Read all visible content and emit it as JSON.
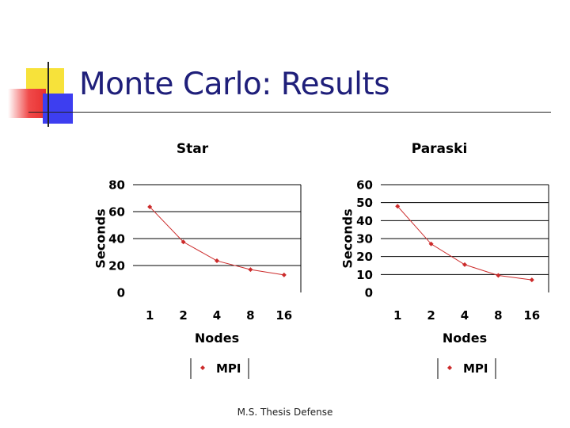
{
  "slide": {
    "title": "Monte Carlo: Results",
    "footer": "M.S. Thesis Defense"
  },
  "colors": {
    "title": "#1f1f7a",
    "series": "#cc2b2b",
    "axis": "#000000"
  },
  "chart_data": [
    {
      "type": "line",
      "title": "Star",
      "xlabel": "Nodes",
      "ylabel": "Seconds",
      "categories": [
        "1",
        "2",
        "4",
        "8",
        "16"
      ],
      "ylim": [
        0,
        80
      ],
      "yticks": [
        "0",
        "20",
        "40",
        "60",
        "80"
      ],
      "grid": "horizontal",
      "legend": "bottom",
      "series": [
        {
          "name": "MPI",
          "values": [
            63.5,
            37.5,
            23.5,
            17,
            13
          ]
        }
      ]
    },
    {
      "type": "line",
      "title": "Paraski",
      "xlabel": "Nodes",
      "ylabel": "Seconds",
      "categories": [
        "1",
        "2",
        "4",
        "8",
        "16"
      ],
      "ylim": [
        0,
        60
      ],
      "yticks": [
        "0",
        "10",
        "20",
        "30",
        "40",
        "50",
        "60"
      ],
      "grid": "horizontal",
      "legend": "bottom",
      "series": [
        {
          "name": "MPI",
          "values": [
            48,
            27,
            15.5,
            9.5,
            7
          ]
        }
      ]
    }
  ]
}
